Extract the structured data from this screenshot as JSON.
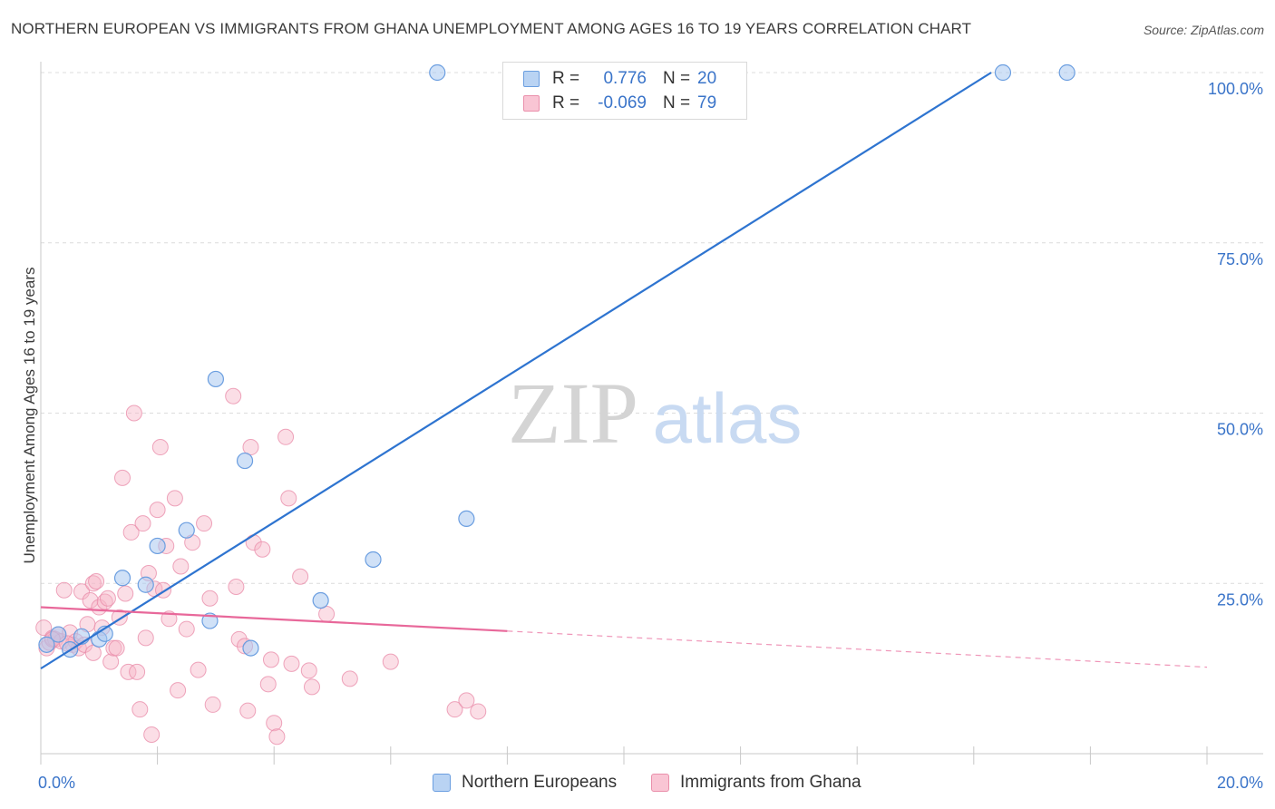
{
  "header": {
    "title": "NORTHERN EUROPEAN VS IMMIGRANTS FROM GHANA UNEMPLOYMENT AMONG AGES 16 TO 19 YEARS CORRELATION CHART",
    "source": "Source: ZipAtlas.com"
  },
  "watermark": {
    "zip": "ZIP",
    "atlas": "atlas"
  },
  "legend": {
    "rows": [
      {
        "r_label": "R =",
        "r_value": "0.776",
        "n_label": "N =",
        "n_value": "20"
      },
      {
        "r_label": "R =",
        "r_value": "-0.069",
        "n_label": "N =",
        "n_value": "79"
      }
    ]
  },
  "bottom_legend": {
    "items": [
      {
        "label": "Northern Europeans"
      },
      {
        "label": "Immigrants from Ghana"
      }
    ]
  },
  "colors": {
    "blue_fill": "#a9c8f0",
    "blue_stroke": "#6b9ee0",
    "blue_line": "#2e74d0",
    "pink_fill": "#f6b6c8",
    "pink_stroke": "#ea8fab",
    "pink_line": "#e8689a",
    "axis_text": "#3a74c9",
    "grid": "#dcdcdc"
  },
  "chart_data": {
    "type": "scatter",
    "title": "NORTHERN EUROPEAN VS IMMIGRANTS FROM GHANA UNEMPLOYMENT AMONG AGES 16 TO 19 YEARS CORRELATION CHART",
    "xlabel": "",
    "ylabel": "Unemployment Among Ages 16 to 19 years",
    "xlim": [
      0,
      20
    ],
    "ylim": [
      0,
      100
    ],
    "x_tick_labels": [
      {
        "value": 0,
        "label": "0.0%"
      },
      {
        "value": 20,
        "label": "20.0%"
      }
    ],
    "y_tick_labels": [
      {
        "value": 25,
        "label": "25.0%"
      },
      {
        "value": 50,
        "label": "50.0%"
      },
      {
        "value": 75,
        "label": "75.0%"
      },
      {
        "value": 100,
        "label": "100.0%"
      }
    ],
    "grid": true,
    "series": [
      {
        "name": "Northern Europeans",
        "color": "#a9c8f0",
        "points": [
          [
            0.1,
            16.0
          ],
          [
            0.3,
            17.5
          ],
          [
            0.5,
            15.3
          ],
          [
            0.7,
            17.2
          ],
          [
            1.0,
            16.8
          ],
          [
            1.1,
            17.6
          ],
          [
            1.4,
            25.8
          ],
          [
            1.8,
            24.8
          ],
          [
            2.0,
            30.5
          ],
          [
            2.5,
            32.8
          ],
          [
            2.9,
            19.5
          ],
          [
            3.0,
            55.0
          ],
          [
            3.5,
            43.0
          ],
          [
            3.6,
            15.5
          ],
          [
            4.8,
            22.5
          ],
          [
            5.7,
            28.5
          ],
          [
            7.3,
            34.5
          ],
          [
            6.8,
            100.0
          ],
          [
            16.5,
            100.0
          ],
          [
            17.6,
            100.0
          ]
        ],
        "trend": {
          "x": [
            0,
            16.3
          ],
          "y": [
            12.5,
            100.0
          ]
        }
      },
      {
        "name": "Immigrants from Ghana",
        "color": "#f6b6c8",
        "points": [
          [
            0.05,
            18.5
          ],
          [
            0.1,
            15.5
          ],
          [
            0.15,
            16.3
          ],
          [
            0.2,
            17.0
          ],
          [
            0.25,
            16.8
          ],
          [
            0.3,
            17.5
          ],
          [
            0.35,
            16.5
          ],
          [
            0.4,
            24.0
          ],
          [
            0.5,
            17.8
          ],
          [
            0.55,
            16.0
          ],
          [
            0.6,
            16.5
          ],
          [
            0.65,
            15.5
          ],
          [
            0.7,
            23.8
          ],
          [
            0.75,
            16.0
          ],
          [
            0.8,
            19.0
          ],
          [
            0.85,
            22.5
          ],
          [
            0.9,
            14.8
          ],
          [
            0.9,
            25.0
          ],
          [
            0.95,
            25.3
          ],
          [
            1.0,
            21.5
          ],
          [
            1.05,
            18.5
          ],
          [
            1.1,
            22.3
          ],
          [
            1.15,
            22.8
          ],
          [
            1.2,
            13.5
          ],
          [
            1.25,
            15.5
          ],
          [
            1.3,
            15.5
          ],
          [
            1.35,
            20.0
          ],
          [
            1.4,
            40.5
          ],
          [
            1.45,
            23.5
          ],
          [
            1.5,
            12.0
          ],
          [
            1.55,
            32.5
          ],
          [
            1.6,
            50.0
          ],
          [
            1.65,
            12.0
          ],
          [
            1.7,
            6.5
          ],
          [
            1.75,
            33.8
          ],
          [
            1.8,
            17.0
          ],
          [
            1.85,
            26.5
          ],
          [
            1.9,
            2.8
          ],
          [
            1.95,
            24.2
          ],
          [
            2.0,
            35.8
          ],
          [
            2.05,
            45.0
          ],
          [
            2.1,
            24.0
          ],
          [
            2.15,
            30.5
          ],
          [
            2.2,
            19.8
          ],
          [
            2.3,
            37.5
          ],
          [
            2.35,
            9.3
          ],
          [
            2.4,
            27.5
          ],
          [
            2.5,
            18.3
          ],
          [
            2.6,
            31.0
          ],
          [
            2.7,
            12.3
          ],
          [
            2.8,
            33.8
          ],
          [
            2.9,
            22.8
          ],
          [
            2.95,
            7.2
          ],
          [
            3.3,
            52.5
          ],
          [
            3.35,
            24.5
          ],
          [
            3.4,
            16.8
          ],
          [
            3.5,
            15.8
          ],
          [
            3.55,
            6.3
          ],
          [
            3.6,
            45.0
          ],
          [
            3.65,
            31.0
          ],
          [
            3.8,
            30.0
          ],
          [
            3.9,
            10.2
          ],
          [
            3.95,
            13.8
          ],
          [
            4.0,
            4.5
          ],
          [
            4.05,
            2.5
          ],
          [
            4.2,
            46.5
          ],
          [
            4.25,
            37.5
          ],
          [
            4.3,
            13.2
          ],
          [
            4.45,
            26.0
          ],
          [
            4.6,
            12.2
          ],
          [
            4.65,
            9.8
          ],
          [
            4.9,
            20.5
          ],
          [
            5.3,
            11.0
          ],
          [
            6.0,
            13.5
          ],
          [
            7.1,
            6.5
          ],
          [
            7.3,
            7.8
          ],
          [
            7.5,
            6.2
          ],
          [
            0.2,
            16.8
          ],
          [
            0.45,
            16.2
          ]
        ],
        "trend": {
          "x": [
            0,
            8.0
          ],
          "y": [
            21.5,
            18.0
          ]
        },
        "trend_extension": {
          "x": [
            8.0,
            20.0
          ],
          "y": [
            18.0,
            12.7
          ]
        }
      }
    ]
  }
}
